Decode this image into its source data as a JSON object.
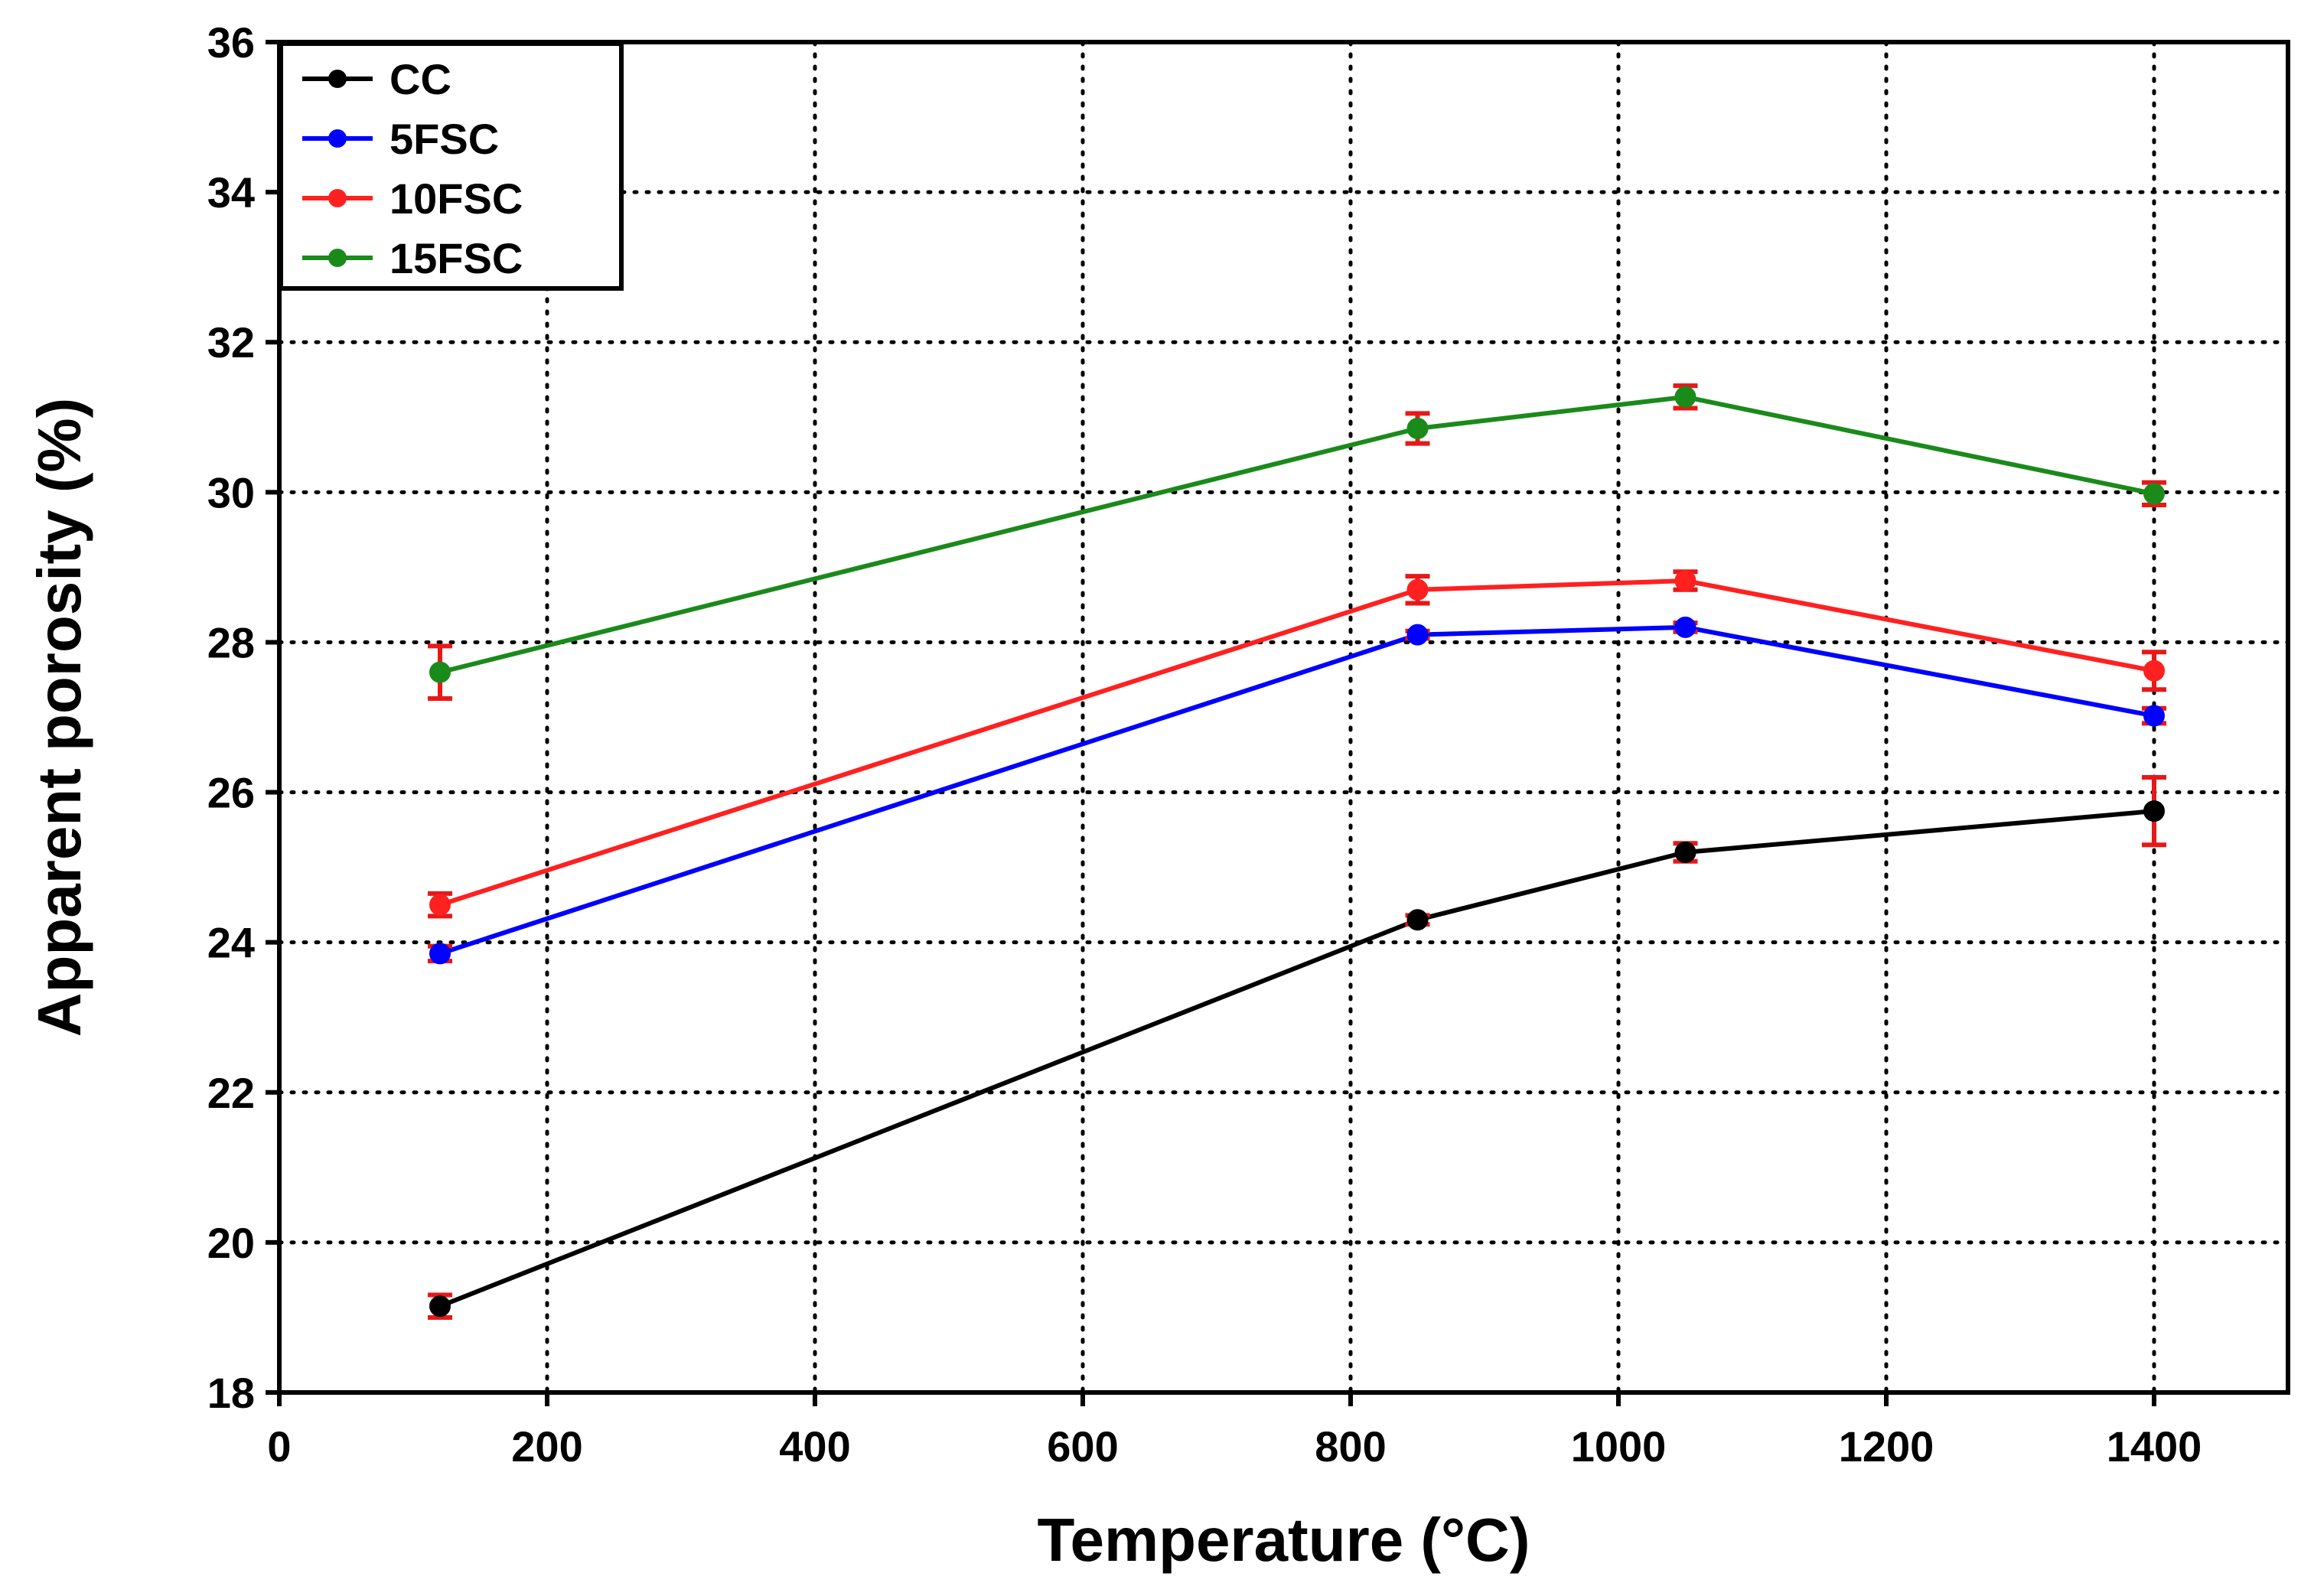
{
  "chart_data": {
    "type": "line",
    "title": "",
    "xlabel": "Temperature (°C)",
    "ylabel": "Apparent porosity (%)",
    "xlim": [
      0,
      1500
    ],
    "ylim": [
      18,
      36
    ],
    "xticks": [
      0,
      200,
      400,
      600,
      800,
      1000,
      1200,
      1400
    ],
    "yticks": [
      18,
      20,
      22,
      24,
      26,
      28,
      30,
      32,
      34,
      36
    ],
    "grid": true,
    "legend_position": "top-left",
    "x": [
      120,
      850,
      1050,
      1400
    ],
    "series": [
      {
        "name": "CC",
        "color": "#000000",
        "values": [
          19.15,
          24.3,
          25.2,
          25.75
        ],
        "errors": [
          0.15,
          0.06,
          0.12,
          0.45
        ]
      },
      {
        "name": "5FSC",
        "color": "#0000ff",
        "values": [
          23.85,
          28.1,
          28.2,
          27.02
        ],
        "errors": [
          0.1,
          0.05,
          0.06,
          0.1
        ]
      },
      {
        "name": "10FSC",
        "color": "#ff2020",
        "values": [
          24.5,
          28.7,
          28.82,
          27.62
        ],
        "errors": [
          0.15,
          0.18,
          0.12,
          0.25
        ]
      },
      {
        "name": "15FSC",
        "color": "#1a8a1a",
        "values": [
          27.6,
          30.85,
          31.27,
          29.98
        ],
        "errors": [
          0.35,
          0.2,
          0.15,
          0.15
        ]
      }
    ]
  }
}
